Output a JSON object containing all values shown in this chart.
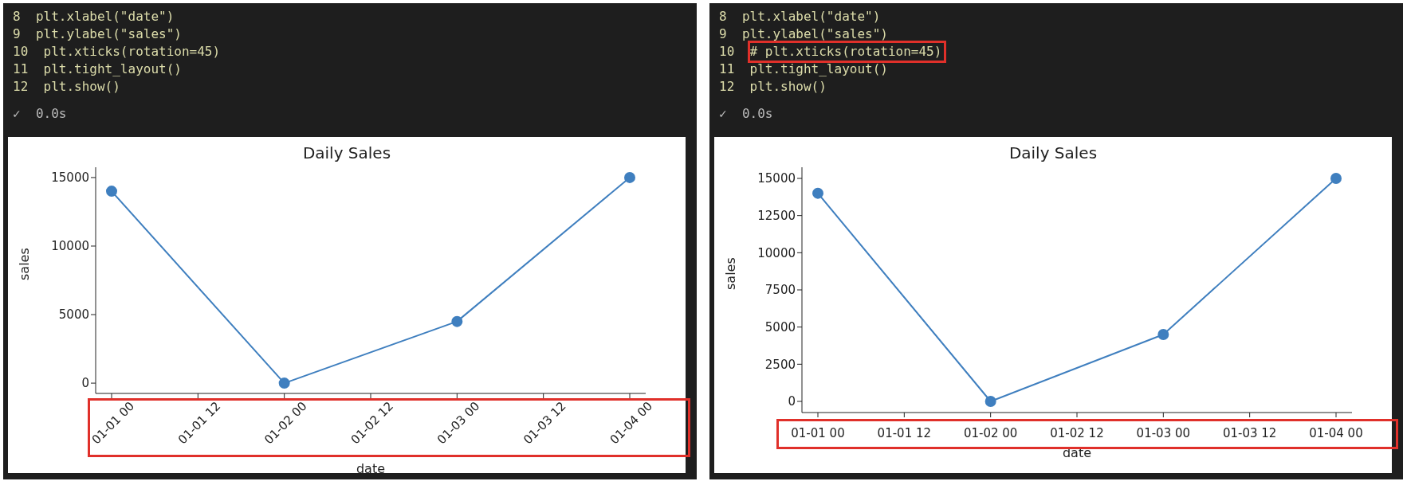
{
  "chart_data": [
    {
      "type": "line",
      "title": "Daily Sales",
      "xlabel": "date",
      "ylabel": "sales",
      "categories": [
        "01-01 00",
        "01-01 12",
        "01-02 00",
        "01-02 12",
        "01-03 00",
        "01-03 12",
        "01-04 00"
      ],
      "series": [
        {
          "color": "#3f7fbf",
          "values": [
            14000,
            null,
            0,
            null,
            4500,
            null,
            15000
          ]
        }
      ],
      "ylim": [
        -750,
        15750
      ],
      "yticks": [
        0,
        5000,
        10000,
        15000
      ],
      "marker": "circle",
      "grid": false,
      "legend": false,
      "annotations": [
        "8  plt.xlabel(\"date\")",
        "9  plt.ylabel(\"sales\")",
        "10  plt.xticks(rotation=45)",
        "11  plt.tight_layout()",
        "12  plt.show()",
        "✓  0.0s"
      ]
    },
    {
      "type": "line",
      "title": "Daily Sales",
      "xlabel": "date",
      "ylabel": "sales",
      "categories": [
        "01-01 00",
        "01-01 12",
        "01-02 00",
        "01-02 12",
        "01-03 00",
        "01-03 12",
        "01-04 00"
      ],
      "series": [
        {
          "color": "#3f7fbf",
          "values": [
            14000,
            null,
            0,
            null,
            4500,
            null,
            15000
          ]
        }
      ],
      "ylim": [
        -750,
        15750
      ],
      "yticks": [
        0,
        2500,
        5000,
        7500,
        10000,
        12500,
        15000
      ],
      "marker": "circle",
      "grid": false,
      "legend": false,
      "annotations": [
        "8  plt.xlabel(\"date\")",
        "9  plt.ylabel(\"sales\")",
        "10  # plt.xticks(rotation=45)",
        "11  plt.tight_layout()",
        "12  plt.show()",
        "✓  0.0s"
      ]
    }
  ]
}
